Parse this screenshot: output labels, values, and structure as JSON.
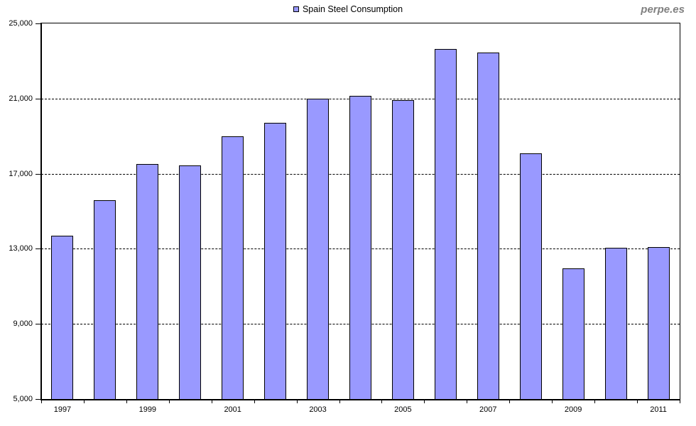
{
  "watermark": "perpe.es",
  "legend": {
    "label": "Spain Steel Consumption"
  },
  "chart_data": {
    "type": "bar",
    "title": "",
    "xlabel": "",
    "ylabel": "",
    "categories": [
      "1997",
      "1998",
      "1999",
      "2000",
      "2001",
      "2002",
      "2003",
      "2004",
      "2005",
      "2006",
      "2007",
      "2008",
      "2009",
      "2010",
      "2011"
    ],
    "series": [
      {
        "name": "Spain Steel Consumption",
        "values": [
          13700,
          15600,
          17500,
          17450,
          19000,
          19700,
          21000,
          21150,
          20900,
          23650,
          23450,
          18100,
          11950,
          13050,
          13100
        ]
      }
    ],
    "ylim": [
      5000,
      25000
    ],
    "ytick_interval": 4000,
    "yticks": [
      25000,
      21000,
      17000,
      13000,
      9000,
      5000
    ],
    "ytick_labels": [
      "25,000",
      "21,000",
      "17,000",
      "13,000",
      "9,000",
      "5,000"
    ],
    "xtick_labels_shown": [
      "1997",
      "1999",
      "2001",
      "2003",
      "2005",
      "2007",
      "2009",
      "2011"
    ],
    "grid": "horizontal-dashed",
    "legend_position": "top-center",
    "colors": {
      "bar_fill": "#9999FF",
      "bar_border": "#000000",
      "axis": "#000000",
      "watermark": "#808080"
    }
  }
}
